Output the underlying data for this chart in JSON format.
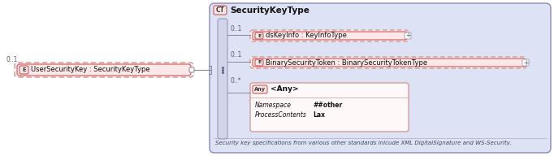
{
  "bg_color": "#ffffff",
  "outer_bg": "#dde3f5",
  "element_fill": "#fce8e8",
  "element_border": "#cc5555",
  "dashed_border_color": "#cc8888",
  "title": "SecurityKeyType",
  "left_element_text": "UserSecurityKey : SecurityKeyType",
  "left_multiplicity": "0..1",
  "row1_text": "dsKeyInfo : KeyInfoType",
  "row1_mult": "0..1",
  "row2_text": "BinarySecurityToken : BinarySecurityTokenType",
  "row2_mult": "0..1",
  "row3_mult": "0..*",
  "any_ns_key": "Namespace",
  "any_ns_val": "##other",
  "any_pc_key": "ProcessContents",
  "any_pc_val": "Lax",
  "footer": "Security key specifications from various other standards inicude XML DigitalSignature and WS-Security.",
  "conn_color": "#888899",
  "seq_bar_color": "#d0d5ea",
  "seq_bar_edge": "#9999bb",
  "text_color": "#111111",
  "mult_color": "#555566",
  "outer_edge": "#8888bb",
  "footer_sep_color": "#aaaacc"
}
